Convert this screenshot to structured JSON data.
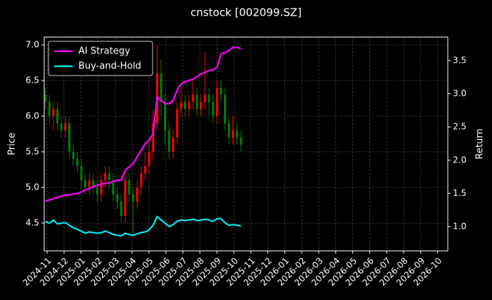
{
  "chart_data": {
    "type": "candlestick",
    "title": "cnstock [002099.SZ]",
    "ylabel": "Price",
    "y2label": "Return",
    "up_color": "#ff0000",
    "down_color": "#008000",
    "grid": true,
    "legend": "upper left",
    "x": [
      -0.1,
      0.135,
      0.37,
      0.605,
      0.84,
      1.075,
      1.31,
      1.545,
      1.78,
      2.015,
      2.25,
      2.485,
      2.72,
      2.955,
      3.19,
      3.425,
      3.66,
      3.895,
      4.13,
      4.365,
      4.6,
      4.835,
      5.07,
      5.305,
      5.54,
      5.775,
      6.01,
      6.245,
      6.48,
      6.715,
      6.95,
      7.185,
      7.42,
      7.655,
      7.89,
      8.125,
      8.36,
      8.595,
      8.83,
      9.065,
      9.3,
      9.535,
      9.77,
      10.005,
      10.24,
      10.475,
      10.71,
      10.945,
      11.18,
      11.415
    ],
    "open": [
      6.3,
      6.2,
      6.0,
      6.1,
      5.9,
      5.8,
      5.9,
      5.5,
      5.4,
      5.3,
      5.1,
      5.0,
      5.1,
      5.0,
      4.9,
      5.1,
      5.2,
      5.1,
      4.9,
      4.8,
      4.6,
      5.1,
      4.9,
      4.8,
      5.0,
      5.2,
      5.3,
      5.5,
      5.9,
      6.6,
      6.2,
      5.8,
      5.5,
      5.7,
      6.1,
      6.2,
      6.1,
      6.2,
      6.3,
      6.1,
      6.2,
      6.3,
      6.2,
      6.0,
      6.4,
      6.3,
      5.9,
      5.7,
      5.8,
      5.7
    ],
    "high": [
      6.4,
      6.3,
      6.2,
      6.2,
      6.0,
      6.0,
      6.0,
      5.6,
      5.5,
      5.4,
      5.2,
      5.2,
      5.2,
      5.1,
      5.2,
      5.3,
      5.3,
      5.2,
      5.0,
      4.9,
      5.2,
      5.2,
      5.0,
      5.1,
      5.3,
      5.5,
      5.7,
      6.1,
      7.0,
      6.8,
      6.3,
      5.9,
      5.8,
      6.2,
      6.4,
      6.3,
      6.3,
      6.5,
      6.4,
      6.3,
      6.9,
      6.4,
      6.3,
      6.5,
      6.5,
      6.4,
      6.0,
      6.0,
      5.9,
      5.8
    ],
    "low": [
      6.1,
      5.9,
      5.8,
      5.8,
      5.7,
      5.7,
      5.4,
      5.3,
      5.2,
      5.0,
      4.9,
      4.9,
      4.9,
      4.8,
      4.8,
      5.0,
      5.0,
      4.8,
      4.7,
      4.5,
      4.5,
      4.8,
      4.3,
      4.7,
      4.9,
      5.1,
      5.2,
      5.4,
      5.8,
      6.0,
      5.6,
      5.4,
      5.4,
      5.6,
      6.0,
      6.0,
      6.0,
      6.1,
      6.0,
      6.0,
      6.1,
      6.0,
      5.9,
      5.9,
      6.2,
      5.8,
      5.6,
      5.6,
      5.6,
      5.5
    ],
    "close": [
      6.2,
      6.0,
      6.1,
      5.9,
      5.8,
      5.9,
      5.5,
      5.4,
      5.3,
      5.1,
      5.0,
      5.1,
      5.0,
      4.9,
      5.1,
      5.2,
      5.1,
      4.9,
      4.8,
      4.6,
      5.1,
      4.9,
      4.8,
      5.0,
      5.2,
      5.3,
      5.5,
      5.9,
      6.6,
      6.2,
      5.8,
      5.5,
      5.7,
      6.1,
      6.2,
      6.1,
      6.2,
      6.3,
      6.1,
      6.2,
      6.3,
      6.2,
      6.0,
      6.4,
      6.3,
      5.9,
      5.7,
      5.8,
      5.7,
      5.6
    ],
    "series": [
      {
        "name": "AI Strategy",
        "color": "#ff00ff",
        "axis": "y2",
        "values": [
          1.38,
          1.4,
          1.42,
          1.44,
          1.46,
          1.47,
          1.48,
          1.49,
          1.5,
          1.52,
          1.55,
          1.57,
          1.6,
          1.62,
          1.64,
          1.65,
          1.66,
          1.68,
          1.7,
          1.7,
          1.85,
          1.9,
          1.95,
          2.05,
          2.15,
          2.25,
          2.3,
          2.4,
          2.95,
          2.9,
          2.85,
          2.85,
          2.9,
          3.05,
          3.15,
          3.18,
          3.2,
          3.22,
          3.26,
          3.3,
          3.32,
          3.35,
          3.36,
          3.4,
          3.6,
          3.62,
          3.65,
          3.7,
          3.7,
          3.68
        ]
      },
      {
        "name": "Buy-and-Hold",
        "color": "#00e5ee",
        "axis": "y2",
        "values": [
          1.08,
          1.05,
          1.1,
          1.04,
          1.05,
          1.06,
          1.02,
          0.98,
          0.96,
          0.93,
          0.9,
          0.92,
          0.91,
          0.9,
          0.91,
          0.93,
          0.91,
          0.88,
          0.87,
          0.86,
          0.9,
          0.88,
          0.87,
          0.89,
          0.91,
          0.92,
          0.95,
          1.02,
          1.15,
          1.1,
          1.05,
          1.0,
          1.03,
          1.08,
          1.1,
          1.09,
          1.1,
          1.11,
          1.09,
          1.1,
          1.11,
          1.1,
          1.08,
          1.12,
          1.12,
          1.06,
          1.02,
          1.03,
          1.02,
          1.01
        ]
      }
    ],
    "xlim": [
      -0.17,
      23.6
    ],
    "xticks": [
      {
        "value": 0,
        "label": "2024-11"
      },
      {
        "value": 1,
        "label": "2024-12"
      },
      {
        "value": 2,
        "label": "2025-01"
      },
      {
        "value": 3,
        "label": "2025-02"
      },
      {
        "value": 4,
        "label": "2025-03"
      },
      {
        "value": 5,
        "label": "2025-04"
      },
      {
        "value": 6,
        "label": "2025-05"
      },
      {
        "value": 7,
        "label": "2025-06"
      },
      {
        "value": 8,
        "label": "2025-07"
      },
      {
        "value": 9,
        "label": "2025-08"
      },
      {
        "value": 10,
        "label": "2025-09"
      },
      {
        "value": 11,
        "label": "2025-10"
      },
      {
        "value": 12,
        "label": "2025-11"
      },
      {
        "value": 13,
        "label": "2025-12"
      },
      {
        "value": 14,
        "label": "2026-01"
      },
      {
        "value": 15,
        "label": "2026-02"
      },
      {
        "value": 16,
        "label": "2026-03"
      },
      {
        "value": 17,
        "label": "2026-04"
      },
      {
        "value": 18,
        "label": "2026-05"
      },
      {
        "value": 19,
        "label": "2026-06"
      },
      {
        "value": 20,
        "label": "2026-07"
      },
      {
        "value": 21,
        "label": "2026-08"
      },
      {
        "value": 22,
        "label": "2026-09"
      },
      {
        "value": 23,
        "label": "2026-10"
      }
    ],
    "ylim": [
      4.11,
      7.11
    ],
    "yticks": [
      4.5,
      {
        "value": 5,
        "label": "5.0"
      },
      5.5,
      {
        "value": 6,
        "label": "6.0"
      },
      6.5,
      {
        "value": 7,
        "label": "7.0"
      }
    ],
    "y2lim": [
      0.635,
      3.854
    ],
    "y2ticks": [
      {
        "value": 1,
        "label": "1.0"
      },
      1.5,
      {
        "value": 2,
        "label": "2.0"
      },
      2.5,
      {
        "value": 3,
        "label": "3.0"
      },
      3.5
    ]
  }
}
